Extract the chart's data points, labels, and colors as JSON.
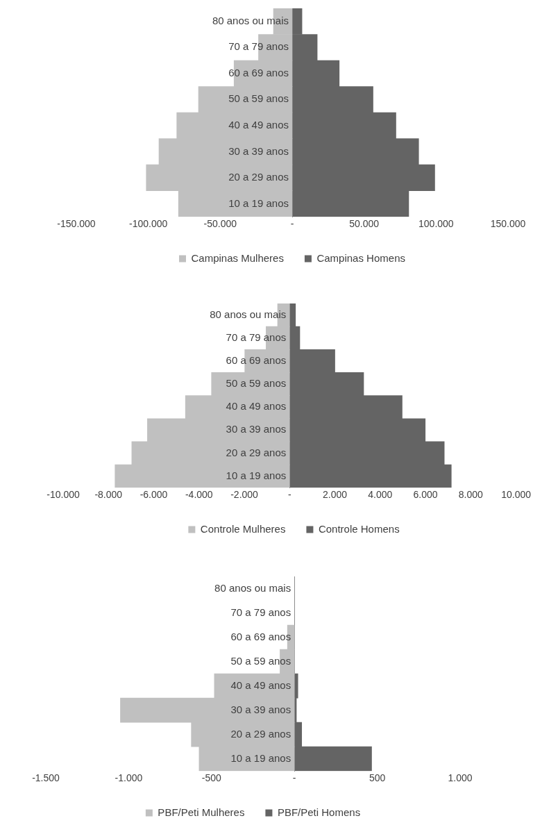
{
  "chart_data": [
    {
      "type": "bar",
      "orientation": "horizontal",
      "stacked": true,
      "grid": false,
      "legend": "bottom",
      "categories": [
        "80 anos ou mais",
        "70 a 79 anos",
        "60 a 69 anos",
        "50 a 59 anos",
        "40 a 49 anos",
        "30 a 39 anos",
        "20 a 29 anos",
        "10 a 19 anos"
      ],
      "series": [
        {
          "name": "Campinas Mulheres",
          "color": "#c0c0c0",
          "values": [
            -13000,
            -23400,
            -40400,
            -65100,
            -80200,
            -92600,
            -101400,
            -79000
          ]
        },
        {
          "name": "Campinas Homens",
          "color": "#646464",
          "values": [
            6800,
            17400,
            32700,
            56200,
            72100,
            87900,
            99100,
            81000
          ]
        }
      ],
      "xlim": [
        -150000,
        150000
      ],
      "xticks": [
        {
          "value": -150000,
          "label": "-150.000"
        },
        {
          "value": -100000,
          "label": "-100.000"
        },
        {
          "value": -50000,
          "label": "-50.000"
        },
        {
          "value": 0,
          "label": "-"
        },
        {
          "value": 50000,
          "label": "50.000"
        },
        {
          "value": 100000,
          "label": "100.000"
        },
        {
          "value": 150000,
          "label": "150.000"
        }
      ]
    },
    {
      "type": "bar",
      "orientation": "horizontal",
      "stacked": true,
      "grid": false,
      "legend": "bottom",
      "categories": [
        "80 anos ou mais",
        "70 a 79 anos",
        "60 a 69 anos",
        "50 a 59 anos",
        "40 a 49 anos",
        "30 a 39 anos",
        "20 a 29 anos",
        "10 a 19 anos"
      ],
      "series": [
        {
          "name": "Controle Mulheres",
          "color": "#c0c0c0",
          "values": [
            -530,
            -1040,
            -1980,
            -3450,
            -4600,
            -6280,
            -6970,
            -7710
          ]
        },
        {
          "name": "Controle Homens",
          "color": "#646464",
          "values": [
            260,
            450,
            2000,
            3270,
            4970,
            5990,
            6830,
            7140
          ]
        }
      ],
      "xlim": [
        -10000,
        10000
      ],
      "xticks": [
        {
          "value": -10000,
          "label": "-10.000"
        },
        {
          "value": -8000,
          "label": "-8.000"
        },
        {
          "value": -6000,
          "label": "-6.000"
        },
        {
          "value": -4000,
          "label": "-4.000"
        },
        {
          "value": -2000,
          "label": "-2.000"
        },
        {
          "value": 0,
          "label": "-"
        },
        {
          "value": 2000,
          "label": "2.000"
        },
        {
          "value": 4000,
          "label": "4.000"
        },
        {
          "value": 6000,
          "label": "6.000"
        },
        {
          "value": 8000,
          "label": "8.000"
        },
        {
          "value": 10000,
          "label": "10.000"
        }
      ]
    },
    {
      "type": "bar",
      "orientation": "horizontal",
      "stacked": true,
      "grid": false,
      "legend": "bottom",
      "categories": [
        "80 anos ou mais",
        "70 a 79 anos",
        "60 a 69 anos",
        "50 a 59 anos",
        "40 a 49 anos",
        "30 a 39 anos",
        "20 a 29 anos",
        "10 a 19 anos"
      ],
      "series": [
        {
          "name": "PBF/Peti Mulheres",
          "color": "#c0c0c0",
          "values": [
            null,
            null,
            -42,
            -87,
            -483,
            -1050,
            -622,
            -575
          ]
        },
        {
          "name": "PBF/Peti Homens",
          "color": "#646464",
          "values": [
            null,
            null,
            null,
            null,
            21,
            12,
            44,
            466
          ]
        }
      ],
      "xlim": [
        -1500,
        1000
      ],
      "xticks": [
        {
          "value": -1500,
          "label": "-1.500"
        },
        {
          "value": -1000,
          "label": "-1.000"
        },
        {
          "value": -500,
          "label": "-500"
        },
        {
          "value": 0,
          "label": "-"
        },
        {
          "value": 500,
          "label": "500"
        },
        {
          "value": 1000,
          "label": "1.000"
        }
      ]
    }
  ]
}
